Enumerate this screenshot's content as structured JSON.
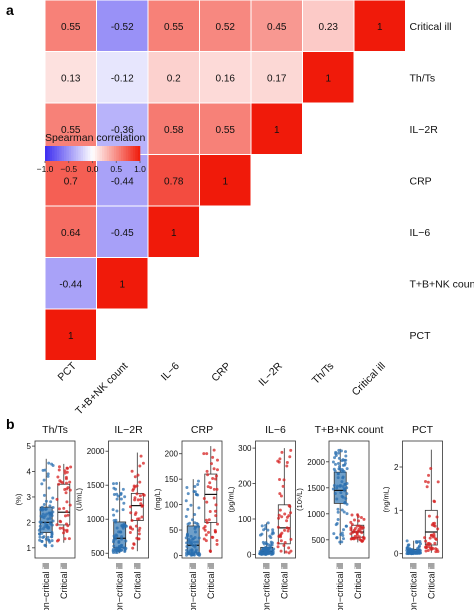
{
  "panel_a_letter": "a",
  "panel_b_letter": "b",
  "chart_data": [
    {
      "type": "heatmap",
      "title": "",
      "variables": [
        "PCT",
        "T+B+NK count",
        "IL−6",
        "CRP",
        "IL−2R",
        "Th/Ts",
        "Critical ill"
      ],
      "matrix_lower_triangle": [
        [
          1
        ],
        [
          -0.44,
          1
        ],
        [
          0.64,
          -0.45,
          1
        ],
        [
          0.7,
          -0.44,
          0.78,
          1
        ],
        [
          0.55,
          -0.36,
          0.58,
          0.55,
          1
        ],
        [
          0.13,
          -0.12,
          0.2,
          0.16,
          0.17,
          1
        ],
        [
          0.55,
          -0.52,
          0.55,
          0.52,
          0.45,
          0.23,
          1
        ]
      ],
      "legend": {
        "title": "Spearman correlation",
        "ticks": [
          "−1.0",
          "−0.5",
          "0.0",
          "0.5",
          "1.0"
        ],
        "range": [
          -1,
          1
        ],
        "colors": {
          "neg": "#3b2bf0",
          "mid": "#ffffff",
          "pos": "#f01a0a"
        }
      }
    },
    {
      "type": "box",
      "categories": [
        "Non−critical ill",
        "Critical ill"
      ],
      "colors": {
        "noncritical": "#2a6fb0",
        "critical": "#d62020",
        "box_fill_noncritical": "#6f9fc9",
        "box_fill_critical": "#ffffff"
      },
      "panels": [
        {
          "title": "Th/Ts",
          "ylabel": "(%)",
          "ylim": [
            0.6,
            5.2
          ],
          "yticks": [
            "1",
            "2",
            "3",
            "4",
            "5"
          ],
          "noncritical": {
            "min": 1.0,
            "q1": 1.6,
            "median": 2.0,
            "q3": 2.6,
            "max": 4.5
          },
          "critical": {
            "min": 1.2,
            "q1": 1.9,
            "median": 2.4,
            "q3": 3.5,
            "max": 4.3
          }
        },
        {
          "title": "IL−2R",
          "ylabel": "(U/mL)",
          "ylim": [
            430,
            2150
          ],
          "yticks": [
            "500",
            "1000",
            "1500",
            "2000"
          ],
          "noncritical": {
            "min": 500,
            "q1": 580,
            "median": 720,
            "q3": 960,
            "max": 1550
          },
          "critical": {
            "min": 530,
            "q1": 980,
            "median": 1200,
            "q3": 1380,
            "max": 1980
          }
        },
        {
          "title": "CRP",
          "ylabel": "(mg/L)",
          "ylim": [
            -5,
            225
          ],
          "yticks": [
            "0",
            "50",
            "100",
            "150",
            "200"
          ],
          "noncritical": {
            "min": 0,
            "q1": 5,
            "median": 20,
            "q3": 58,
            "max": 150
          },
          "critical": {
            "min": 5,
            "q1": 65,
            "median": 120,
            "q3": 160,
            "max": 215
          }
        },
        {
          "title": "IL−6",
          "ylabel": "(pg/mL)",
          "ylim": [
            -10,
            320
          ],
          "yticks": [
            "0",
            "100",
            "200",
            "300"
          ],
          "noncritical": {
            "min": 0,
            "q1": 3,
            "median": 8,
            "q3": 20,
            "max": 90
          },
          "critical": {
            "min": 2,
            "q1": 30,
            "median": 75,
            "q3": 140,
            "max": 300
          }
        },
        {
          "title": "T+B+NK count",
          "ylabel": "(10⁶/L)",
          "ylim": [
            150,
            2400
          ],
          "yticks": [
            "500",
            "1000",
            "1500",
            "2000"
          ],
          "noncritical": {
            "min": 400,
            "q1": 1200,
            "median": 1450,
            "q3": 1800,
            "max": 2250
          },
          "critical": {
            "min": 450,
            "q1": 550,
            "median": 650,
            "q3": 780,
            "max": 1000
          }
        },
        {
          "title": "PCT",
          "ylabel": "(ng/mL)",
          "ylim": [
            -0.1,
            2.6
          ],
          "yticks": [
            "0",
            "1",
            "2"
          ],
          "noncritical": {
            "min": 0,
            "q1": 0.02,
            "median": 0.05,
            "q3": 0.1,
            "max": 0.3
          },
          "critical": {
            "min": 0.02,
            "q1": 0.2,
            "median": 0.5,
            "q3": 1.0,
            "max": 2.4
          }
        }
      ]
    }
  ]
}
